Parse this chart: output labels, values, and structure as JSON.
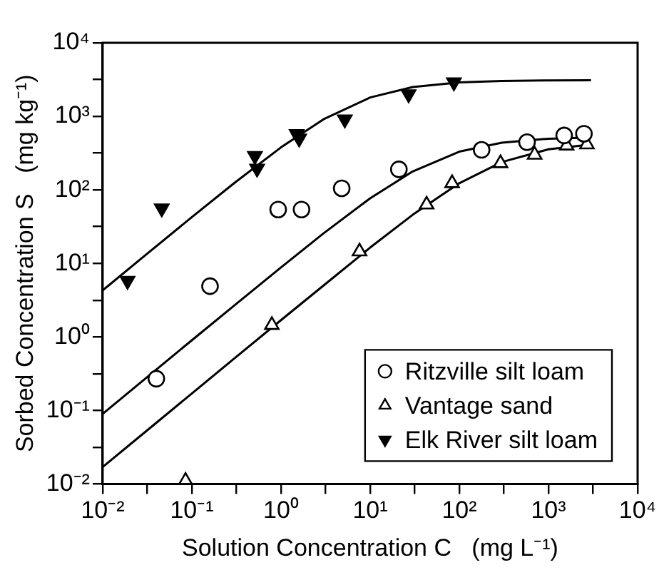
{
  "chart_data": {
    "type": "scatter",
    "xlabel": "Solution Concentration C   (mg L⁻¹)",
    "ylabel": "Sorbed Concentration S   (mg kg⁻¹)",
    "log": "xy",
    "grid": false,
    "legend": "bottom right",
    "xlim": [
      0.01,
      10000
    ],
    "ylim": [
      0.01,
      10000
    ],
    "xticks": [
      {
        "value": 0.01,
        "label": "10⁻²"
      },
      {
        "value": 0.0316,
        "label": null
      },
      {
        "value": 0.1,
        "label": "10⁻¹"
      },
      {
        "value": 0.316,
        "label": null
      },
      {
        "value": 1,
        "label": "10⁰"
      },
      {
        "value": 3.16,
        "label": null
      },
      {
        "value": 10,
        "label": "10¹"
      },
      {
        "value": 31.6,
        "label": null
      },
      {
        "value": 100,
        "label": "10²"
      },
      {
        "value": 316,
        "label": null
      },
      {
        "value": 1000,
        "label": "10³"
      },
      {
        "value": 3160,
        "label": null
      },
      {
        "value": 10000,
        "label": "10⁴"
      }
    ],
    "yticks": [
      {
        "value": 0.01,
        "label": "10⁻²"
      },
      {
        "value": 0.0316,
        "label": null
      },
      {
        "value": 0.1,
        "label": "10⁻¹"
      },
      {
        "value": 0.316,
        "label": null
      },
      {
        "value": 1,
        "label": "10⁰"
      },
      {
        "value": 3.16,
        "label": null
      },
      {
        "value": 10,
        "label": "10¹"
      },
      {
        "value": 31.6,
        "label": null
      },
      {
        "value": 100,
        "label": "10²"
      },
      {
        "value": 316,
        "label": null
      },
      {
        "value": 1000,
        "label": "10³"
      },
      {
        "value": 3160,
        "label": null
      },
      {
        "value": 10000,
        "label": "10⁴"
      }
    ],
    "series": [
      {
        "name": "Ritzville silt loam",
        "color": "#000000",
        "marker": "circle",
        "x": [
          0.04,
          0.16,
          0.93,
          1.7,
          4.8,
          21,
          178,
          575,
          1500,
          2500
        ],
        "values": [
          0.27,
          4.9,
          54,
          54,
          105,
          190,
          350,
          445,
          550,
          580
        ]
      },
      {
        "name": "Vantage sand",
        "color": "#000000",
        "marker": "triangle",
        "x": [
          0.085,
          0.79,
          7.6,
          43,
          83,
          290,
          700,
          1600,
          2700
        ],
        "values": [
          0.011,
          1.45,
          14.5,
          63,
          123,
          230,
          300,
          400,
          415
        ]
      },
      {
        "name": "Elk River silt loam",
        "color": "#000000",
        "marker": "triangle-down",
        "x": [
          0.019,
          0.046,
          0.51,
          0.54,
          1.5,
          1.6,
          5.2,
          27,
          87
        ],
        "values": [
          5.8,
          56,
          290,
          195,
          575,
          500,
          910,
          2000,
          2900
        ]
      },
      {
        "type": "line",
        "color": "#000000",
        "marker": "none",
        "x": [
          0.01,
          0.03,
          0.1,
          0.3,
          1,
          3,
          10,
          30,
          100,
          300,
          1000,
          3000
        ],
        "values": [
          0.09,
          0.27,
          0.9,
          2.68,
          8.8,
          25.6,
          76.7,
          178,
          331,
          439,
          496,
          515
        ]
      },
      {
        "type": "line",
        "color": "#000000",
        "marker": "none",
        "x": [
          0.01,
          0.03,
          0.1,
          0.3,
          1,
          3,
          10,
          30,
          100,
          300,
          1000,
          3000
        ],
        "values": [
          0.017,
          0.051,
          0.17,
          0.51,
          1.69,
          5.0,
          16.4,
          45.8,
          123,
          239,
          356,
          414
        ]
      },
      {
        "type": "line",
        "color": "#000000",
        "marker": "none",
        "x": [
          0.01,
          0.03,
          0.1,
          0.3,
          1,
          3,
          10,
          30,
          100,
          300,
          1000,
          3000
        ],
        "values": [
          4.3,
          12.9,
          42.5,
          124,
          378,
          912,
          1804,
          2500,
          2893,
          3027,
          3078,
          3093
        ]
      }
    ]
  }
}
